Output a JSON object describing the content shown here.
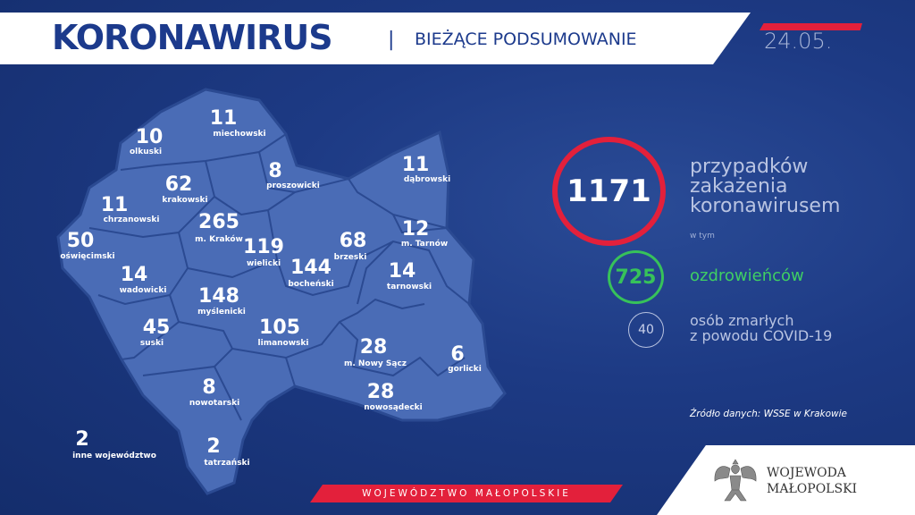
{
  "header": {
    "title": "KORONAWIRUS",
    "separator": "|",
    "subtitle": "BIEŻĄCE PODSUMOWANIE",
    "date": "24.05."
  },
  "summary": {
    "total_cases": "1171",
    "total_label_lines": [
      "przypadków",
      "zakażenia",
      "koronawirusem"
    ],
    "including": "w tym",
    "recovered": "725",
    "recovered_label": "ozdrowieńców",
    "deaths": "40",
    "deaths_label_lines": [
      "osób zmarłych",
      "z powodu COVID-19"
    ],
    "source": "Źródło danych: WSSE w Krakowie"
  },
  "colors": {
    "background": "#1d3a84",
    "accent_red": "#e3203b",
    "recovered_green": "#37c25a",
    "map_fill": "#4a6cb6"
  },
  "map": {
    "districts": [
      {
        "name": "miechowski",
        "value": "11"
      },
      {
        "name": "olkuski",
        "value": "10"
      },
      {
        "name": "proszowicki",
        "value": "8"
      },
      {
        "name": "dąbrowski",
        "value": "11"
      },
      {
        "name": "krakowski",
        "value": "62"
      },
      {
        "name": "chrzanowski",
        "value": "11"
      },
      {
        "name": "m. Kraków",
        "value": "265"
      },
      {
        "name": "wielicki",
        "value": "119"
      },
      {
        "name": "brzeski",
        "value": "68"
      },
      {
        "name": "m. Tarnów",
        "value": "12"
      },
      {
        "name": "oświęcimski",
        "value": "50"
      },
      {
        "name": "bocheński",
        "value": "144"
      },
      {
        "name": "wadowicki",
        "value": "14"
      },
      {
        "name": "tarnowski",
        "value": "14"
      },
      {
        "name": "myślenicki",
        "value": "148"
      },
      {
        "name": "limanowski",
        "value": "105"
      },
      {
        "name": "suski",
        "value": "45"
      },
      {
        "name": "m. Nowy Sącz",
        "value": "28"
      },
      {
        "name": "gorlicki",
        "value": "6"
      },
      {
        "name": "nowotarski",
        "value": "8"
      },
      {
        "name": "nowosądecki",
        "value": "28"
      },
      {
        "name": "tatrzański",
        "value": "2"
      },
      {
        "name": "inne województwo",
        "value": "2"
      }
    ]
  },
  "footer": {
    "region": "WOJEWÓDZTWO MAŁOPOLSKIE",
    "logo_lines": [
      "WOJEWODA",
      "MAŁOPOLSKI"
    ]
  }
}
